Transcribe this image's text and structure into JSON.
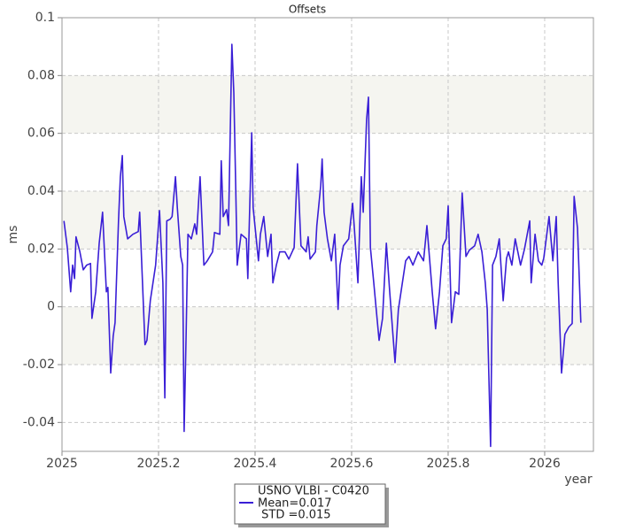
{
  "chart_data": {
    "type": "line",
    "title": "Offsets",
    "xlabel": "year",
    "ylabel": "ms",
    "xlim": [
      2025,
      2026.101
    ],
    "ylim": [
      -0.05,
      0.1
    ],
    "xticks": [
      2025,
      2025.2,
      2025.4,
      2025.6,
      2025.8,
      2026
    ],
    "yticks": [
      -0.04,
      -0.02,
      0,
      0.02,
      0.04,
      0.06,
      0.08,
      0.1
    ],
    "grid": true,
    "alternate_bands": true,
    "legend": "bottom",
    "x": [
      2025.004,
      2025.011,
      2025.018,
      2025.022,
      2025.026,
      2025.029,
      2025.037,
      2025.044,
      2025.051,
      2025.059,
      2025.062,
      2025.07,
      2025.077,
      2025.084,
      2025.092,
      2025.095,
      2025.101,
      2025.106,
      2025.11,
      2025.117,
      2025.121,
      2025.125,
      2025.128,
      2025.136,
      2025.147,
      2025.158,
      2025.161,
      2025.172,
      2025.176,
      2025.183,
      2025.194,
      2025.202,
      2025.209,
      2025.213,
      2025.217,
      2025.224,
      2025.228,
      2025.235,
      2025.239,
      2025.246,
      2025.25,
      2025.253,
      2025.257,
      2025.261,
      2025.268,
      2025.275,
      2025.279,
      2025.286,
      2025.294,
      2025.301,
      2025.312,
      2025.316,
      2025.327,
      2025.33,
      2025.334,
      2025.341,
      2025.345,
      2025.352,
      2025.356,
      2025.36,
      2025.363,
      2025.371,
      2025.382,
      2025.385,
      2025.393,
      2025.396,
      2025.407,
      2025.411,
      2025.418,
      2025.426,
      2025.433,
      2025.437,
      2025.444,
      2025.451,
      2025.462,
      2025.47,
      2025.481,
      2025.488,
      2025.495,
      2025.506,
      2025.51,
      2025.514,
      2025.525,
      2025.528,
      2025.536,
      2025.539,
      2025.543,
      2025.55,
      2025.558,
      2025.565,
      2025.572,
      2025.576,
      2025.583,
      2025.594,
      2025.602,
      2025.606,
      2025.613,
      2025.62,
      2025.624,
      2025.631,
      2025.635,
      2025.639,
      2025.646,
      2025.657,
      2025.664,
      2025.672,
      2025.679,
      2025.69,
      2025.697,
      2025.712,
      2025.719,
      2025.727,
      2025.738,
      2025.749,
      2025.756,
      2025.767,
      2025.774,
      2025.782,
      2025.789,
      2025.796,
      2025.8,
      2025.807,
      2025.815,
      2025.822,
      2025.829,
      2025.837,
      2025.844,
      2025.855,
      2025.862,
      2025.87,
      2025.877,
      2025.881,
      2025.888,
      2025.892,
      2025.899,
      2025.906,
      2025.914,
      2025.921,
      2025.925,
      2025.932,
      2025.939,
      2025.95,
      2025.958,
      2025.969,
      2025.972,
      2025.98,
      2025.987,
      2025.994,
      2025.998,
      2026.009,
      2026.017,
      2026.024,
      2026.028,
      2026.035,
      2026.042,
      2026.05,
      2026.057,
      2026.061,
      2026.068,
      2026.075
    ],
    "series": [
      {
        "name": "USNO VLBI - C0420",
        "color": "#3a1fd6",
        "values": [
          0.0297,
          0.0205,
          0.0052,
          0.0144,
          0.0098,
          0.0242,
          0.019,
          0.0128,
          0.0144,
          0.015,
          -0.004,
          0.0052,
          0.022,
          0.0327,
          0.0052,
          0.0067,
          -0.0229,
          -0.0101,
          -0.0055,
          0.0297,
          0.045,
          0.0523,
          0.0312,
          0.0235,
          0.0251,
          0.026,
          0.0327,
          -0.0131,
          -0.0116,
          0.0021,
          0.0144,
          0.0333,
          0.0083,
          -0.0315,
          0.0297,
          0.0303,
          0.0312,
          0.045,
          0.0343,
          0.0174,
          0.0144,
          -0.0431,
          -0.0101,
          0.0251,
          0.0235,
          0.0287,
          0.0251,
          0.045,
          0.0144,
          0.0159,
          0.019,
          0.0257,
          0.0251,
          0.0505,
          0.0312,
          0.0336,
          0.0281,
          0.0908,
          0.074,
          0.0404,
          0.0144,
          0.0251,
          0.0235,
          0.0098,
          0.0602,
          0.0343,
          0.0159,
          0.0251,
          0.0312,
          0.0174,
          0.0251,
          0.0083,
          0.0144,
          0.019,
          0.019,
          0.0165,
          0.0205,
          0.0495,
          0.0211,
          0.019,
          0.0242,
          0.0165,
          0.019,
          0.0281,
          0.0419,
          0.0511,
          0.0327,
          0.0235,
          0.0159,
          0.0251,
          -0.0009,
          0.0144,
          0.0211,
          0.0235,
          0.0358,
          0.0266,
          0.0083,
          0.045,
          0.0327,
          0.0648,
          0.0725,
          0.0205,
          0.0083,
          -0.0116,
          -0.004,
          0.022,
          0.0052,
          -0.0193,
          -0.0009,
          0.0159,
          0.0174,
          0.0144,
          0.019,
          0.0159,
          0.0281,
          0.0052,
          -0.0076,
          0.0052,
          0.0211,
          0.0235,
          0.0349,
          -0.0055,
          0.0052,
          0.0043,
          0.0394,
          0.0174,
          0.0196,
          0.0211,
          0.0251,
          0.019,
          0.0083,
          -0.0009,
          -0.0483,
          0.0144,
          0.0174,
          0.0235,
          0.0021,
          0.0168,
          0.019,
          0.0144,
          0.0235,
          0.0144,
          0.0199,
          0.0297,
          0.0083,
          0.0251,
          0.0159,
          0.0144,
          0.0168,
          0.0312,
          0.0159,
          0.0312,
          0.0083,
          -0.0229,
          -0.0095,
          -0.007,
          -0.0058,
          0.0382,
          0.0272,
          -0.0055
        ]
      }
    ],
    "legend_lines": [
      "Mean=0.017",
      " STD =0.015"
    ]
  }
}
